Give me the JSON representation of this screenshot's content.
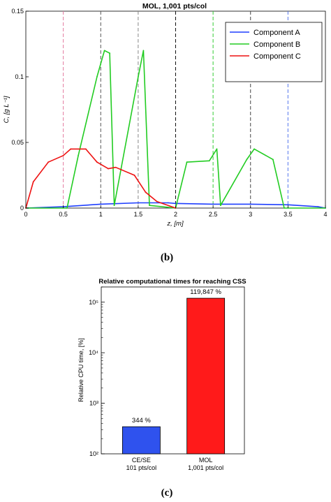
{
  "chart_data": [
    {
      "type": "line",
      "panel": "(b)",
      "title": "MOL, 1,001 pts/col",
      "xlabel": "z, [m]",
      "ylabel": "C, [g L⁻¹]",
      "xlim": [
        0,
        4
      ],
      "ylim": [
        0,
        0.15
      ],
      "xticks": [
        "0",
        "0.5",
        "1",
        "1.5",
        "2",
        "2.5",
        "3",
        "3.5",
        "4"
      ],
      "yticks": [
        "0",
        "0.05",
        "0.1",
        "0.15"
      ],
      "grid": false,
      "legend_position": "top-right",
      "series": [
        {
          "name": "Component A",
          "color": "#1f3fff",
          "x": [
            0,
            0.5,
            1.0,
            1.5,
            1.9,
            2.0,
            2.5,
            3.0,
            3.5,
            3.9,
            4.0
          ],
          "y": [
            0,
            0.001,
            0.003,
            0.004,
            0.004,
            0.0035,
            0.003,
            0.003,
            0.0025,
            0.001,
            0
          ]
        },
        {
          "name": "Component B",
          "color": "#22cc22",
          "x": [
            0,
            0.55,
            0.7,
            0.95,
            1.05,
            1.12,
            1.18,
            1.5,
            1.57,
            1.65,
            2.0,
            2.15,
            2.45,
            2.55,
            2.6,
            2.95,
            3.05,
            3.3,
            3.45,
            4.0
          ],
          "y": [
            0,
            0,
            0.04,
            0.1,
            0.12,
            0.118,
            0.002,
            0.1,
            0.12,
            0.002,
            0,
            0.035,
            0.036,
            0.045,
            0.002,
            0.037,
            0.045,
            0.037,
            0,
            0
          ]
        },
        {
          "name": "Component C",
          "color": "#ee1111",
          "x": [
            0,
            0.1,
            0.3,
            0.5,
            0.6,
            0.8,
            0.95,
            1.1,
            1.2,
            1.45,
            1.6,
            1.75,
            2.0
          ],
          "y": [
            0,
            0.02,
            0.035,
            0.04,
            0.045,
            0.045,
            0.035,
            0.03,
            0.031,
            0.025,
            0.012,
            0.005,
            0
          ]
        }
      ],
      "vertical_markers": [
        {
          "x": 0.5,
          "color": "#e27a9e"
        },
        {
          "x": 1.0,
          "color": "#555555"
        },
        {
          "x": 1.5,
          "color": "#888888"
        },
        {
          "x": 2.0,
          "color": "#111111"
        },
        {
          "x": 2.5,
          "color": "#33cc33"
        },
        {
          "x": 3.0,
          "color": "#444444"
        },
        {
          "x": 3.5,
          "color": "#5577ee"
        }
      ]
    },
    {
      "type": "bar",
      "panel": "(c)",
      "title": "Relative computational times for reaching CSS",
      "ylabel": "Relative CPU time, [%]",
      "yscale": "log",
      "ylim": [
        100,
        200000
      ],
      "yticks": [
        "10²",
        "10³",
        "10⁴",
        "10⁵"
      ],
      "grid": false,
      "categories": [
        {
          "line1": "CE/SE",
          "line2": "101 pts/col"
        },
        {
          "line1": "MOL",
          "line2": "1,001 pts/col"
        }
      ],
      "values": [
        344,
        119847
      ],
      "value_labels": [
        "344 %",
        "119,847 %"
      ],
      "colors": [
        "#2f52ee",
        "#ff1a1a"
      ]
    }
  ],
  "labels": {
    "b": "(b)",
    "c": "(c)"
  }
}
